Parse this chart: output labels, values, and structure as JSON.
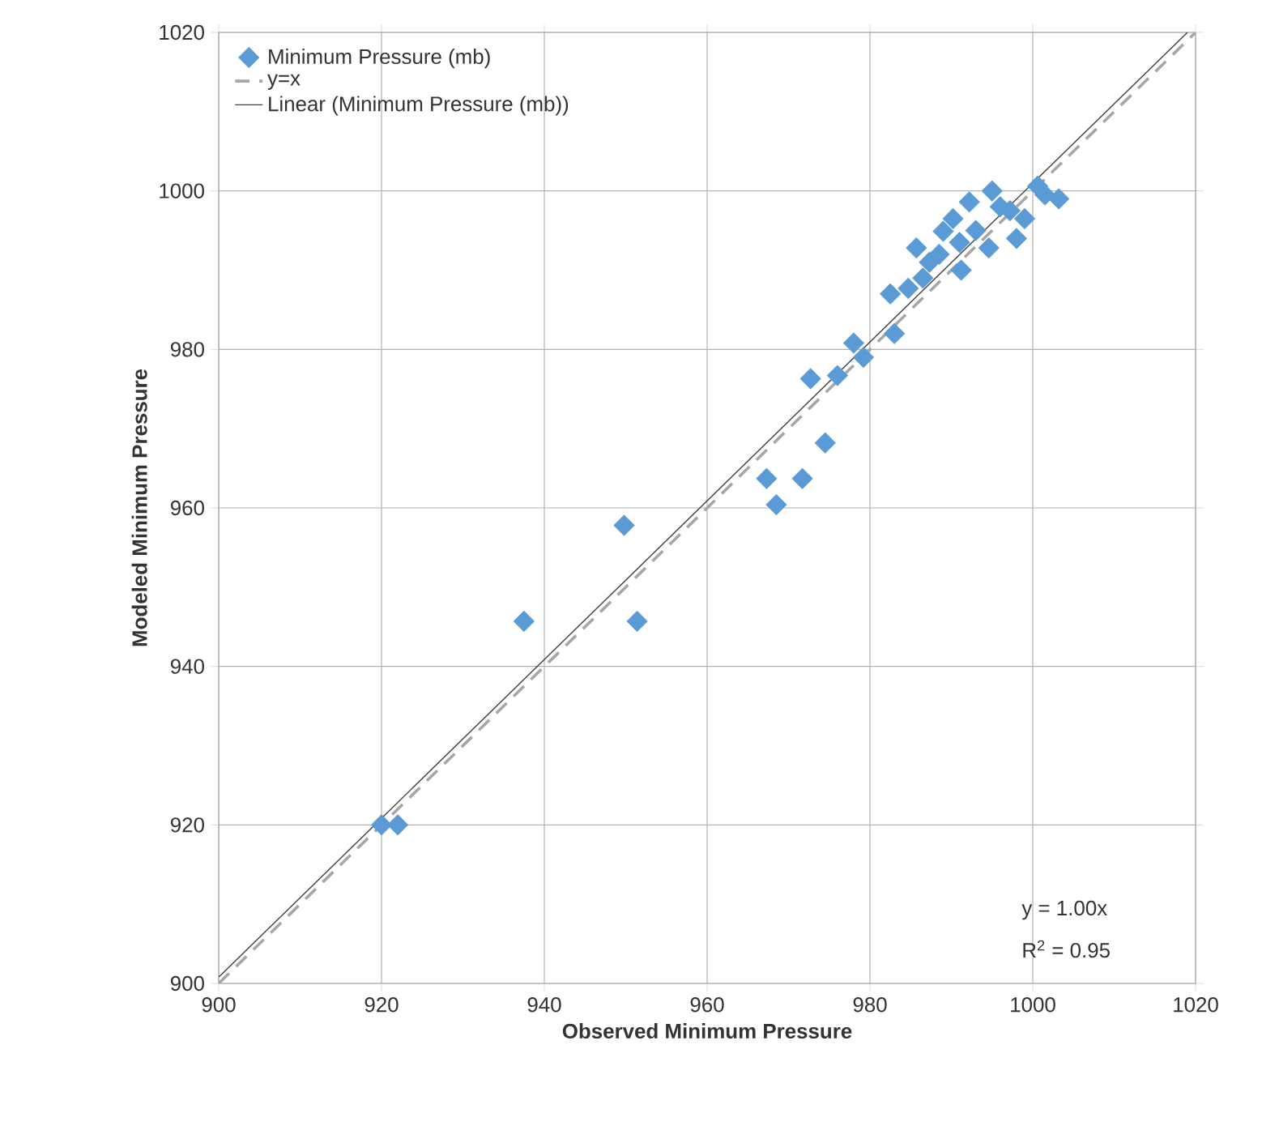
{
  "chart_data": {
    "type": "scatter",
    "xlabel": "Observed Minimum Pressure",
    "ylabel": "Modeled Minimum Pressure",
    "xlim": [
      900,
      1020
    ],
    "ylim": [
      900,
      1020
    ],
    "xticks": [
      900,
      920,
      940,
      960,
      980,
      1000,
      1020
    ],
    "yticks": [
      900,
      920,
      940,
      960,
      980,
      1000,
      1020
    ],
    "grid": true,
    "legend": "top left",
    "annotations": [
      "y = 1.00x",
      "R$^{2}$ = 0.95"
    ],
    "series": [
      {
        "name": "Minimum Pressure (mb)",
        "color": "#5b9bd5",
        "marker": "diamond",
        "x": [
          920,
          922,
          937.5,
          949.8,
          951.4,
          967.3,
          968.5,
          971.7,
          974.5,
          972.7,
          976,
          978,
          979.2,
          983,
          982.5,
          984.7,
          985.7,
          987.3,
          989,
          991.2,
          990.2,
          992.2,
          995,
          994.6,
          997.2,
          998,
          1000.6,
          1003.2,
          988.5,
          993,
          996,
          999,
          986.5,
          991,
          1001.5
        ],
        "values": [
          920,
          920,
          945.7,
          957.8,
          945.7,
          963.7,
          960.4,
          963.7,
          968.2,
          976.3,
          976.7,
          980.8,
          979,
          982,
          987,
          987.7,
          992.8,
          991,
          994.9,
          990,
          996.5,
          998.6,
          1000,
          992.8,
          997.5,
          994,
          1000.6,
          999,
          992,
          995,
          998,
          996.5,
          989,
          993.5,
          999.5
        ]
      },
      {
        "name": "y=x",
        "type": "line",
        "color": "#a6a6a6",
        "line_style": "dashed",
        "marker": "none",
        "x": [
          900,
          1020
        ],
        "values": [
          900,
          1020
        ]
      },
      {
        "name": "Linear (Minimum Pressure (mb))",
        "type": "line",
        "color": "#404040",
        "line_style": "solid",
        "marker": "none",
        "x": [
          900,
          1019
        ],
        "values": [
          900.8,
          1020
        ]
      }
    ]
  }
}
